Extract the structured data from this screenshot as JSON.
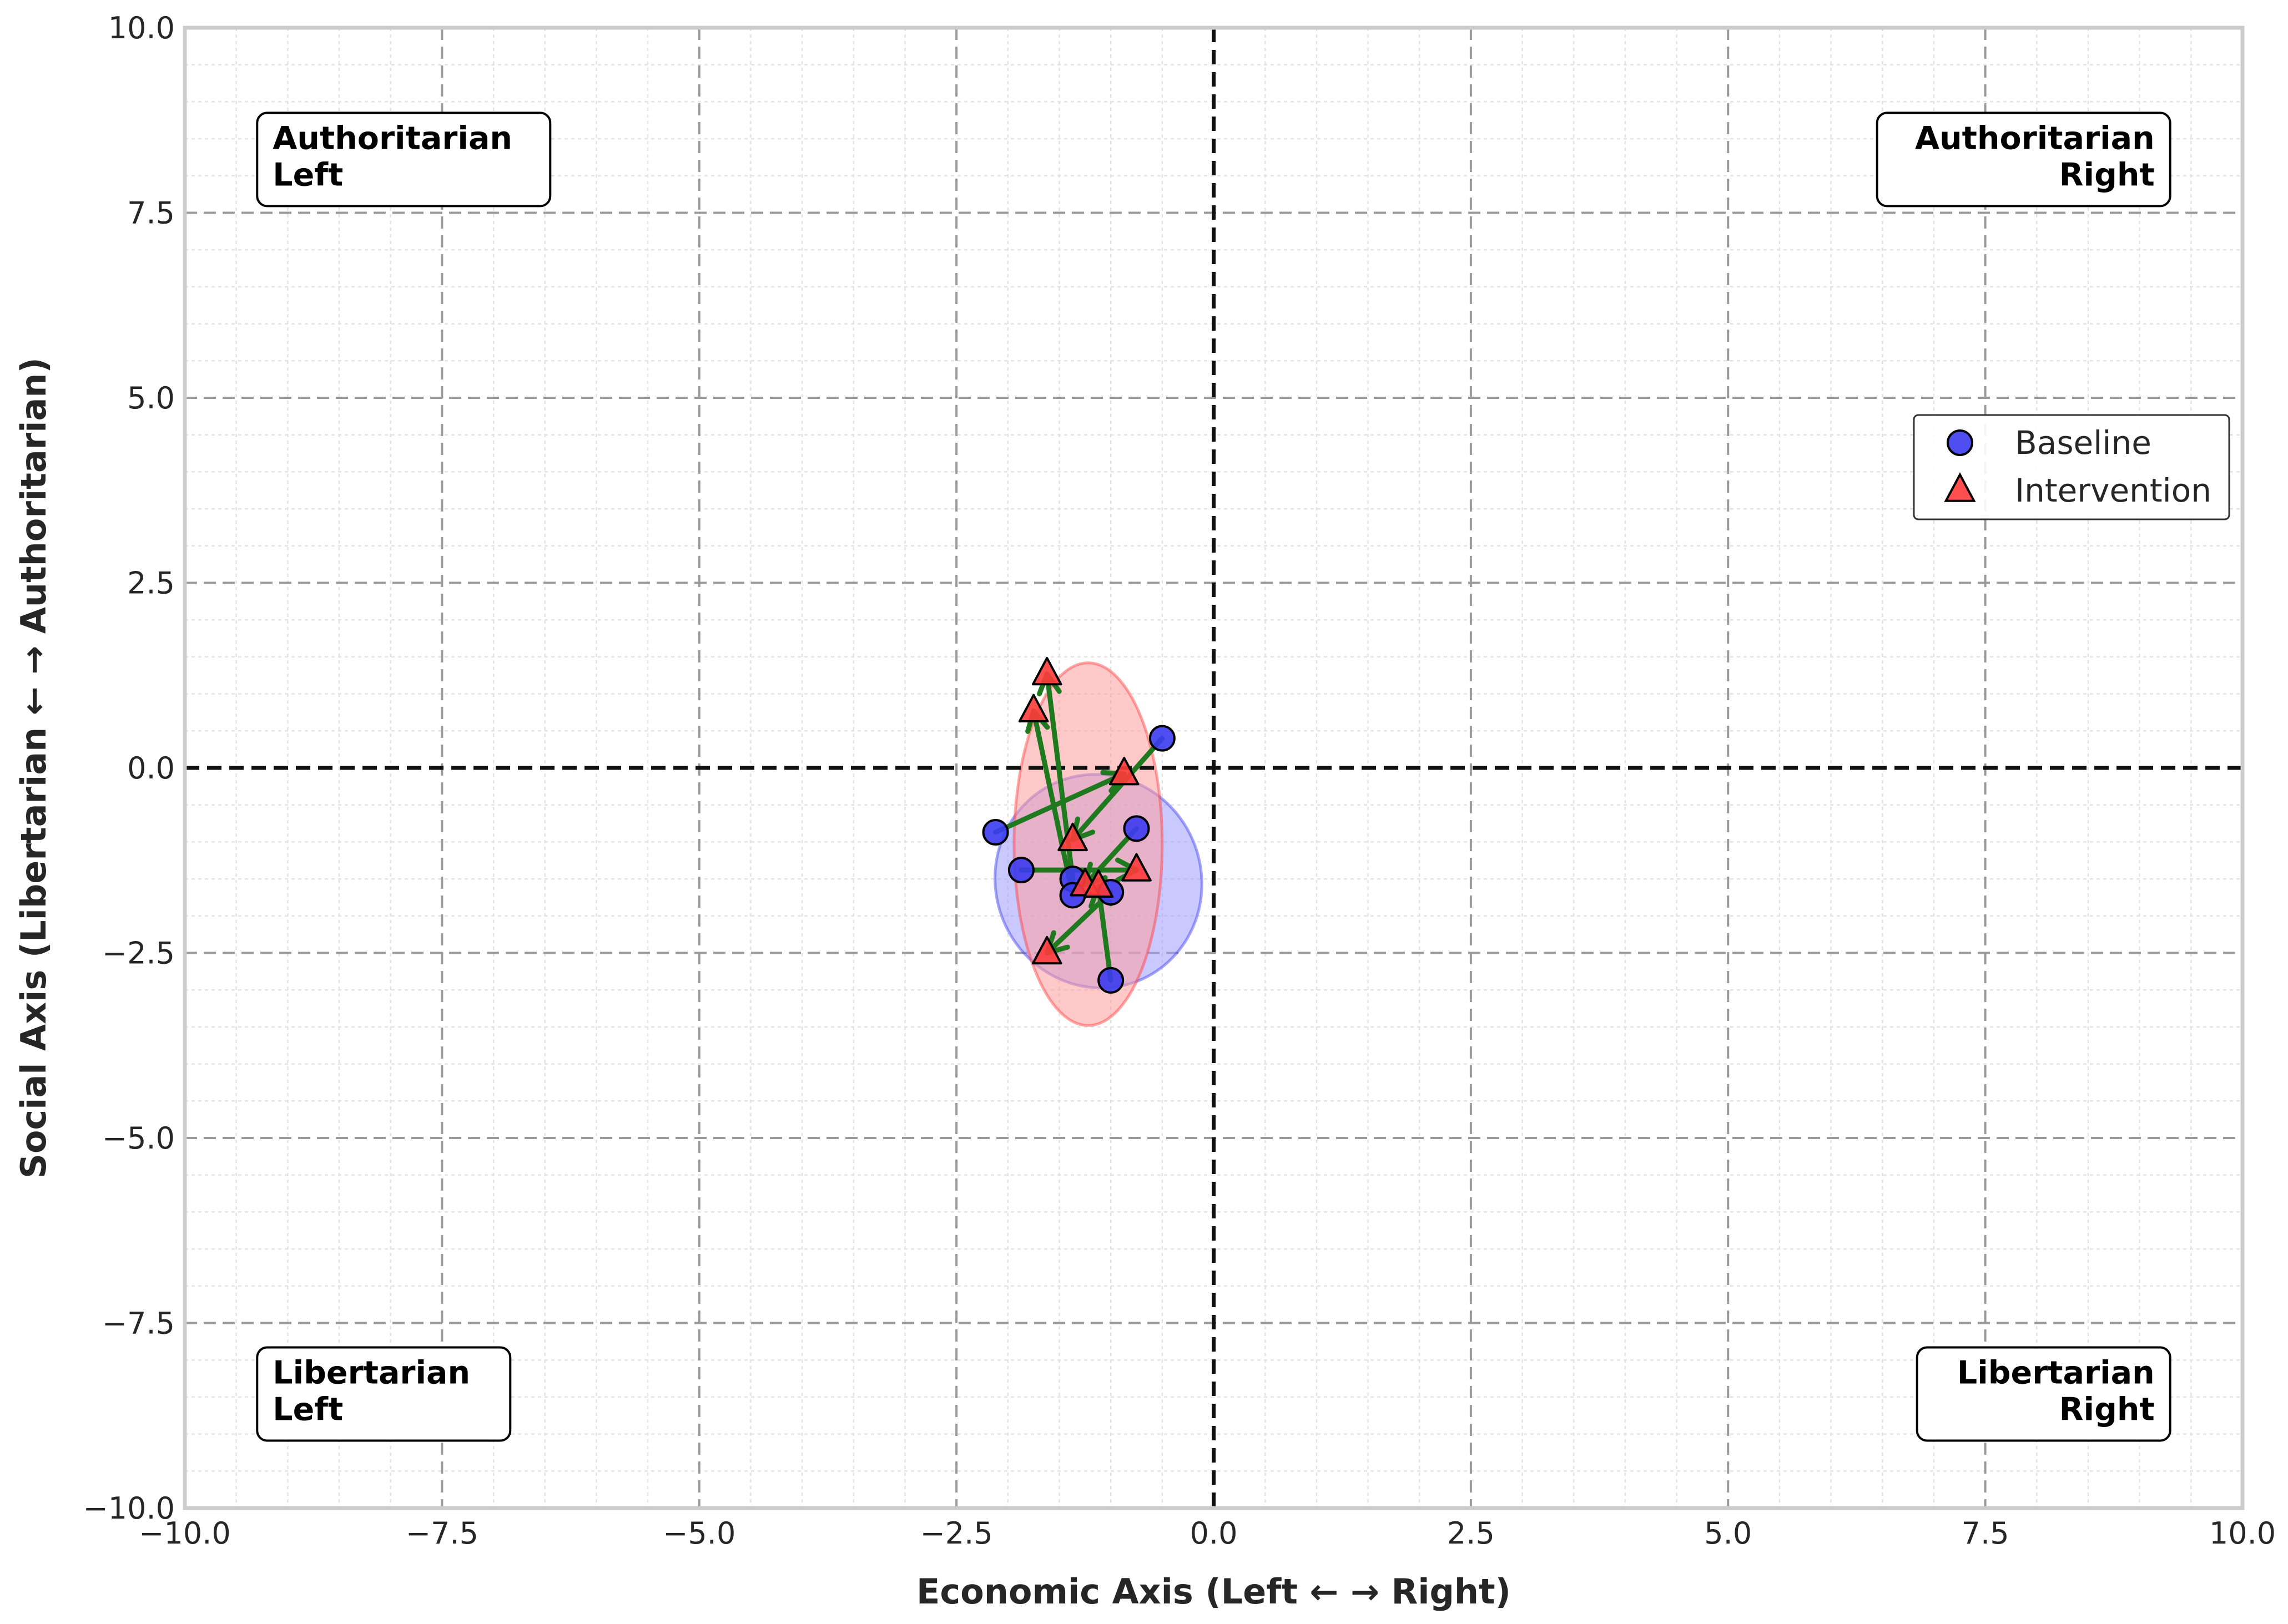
{
  "chart_data": {
    "type": "scatter",
    "xlabel": "Economic Axis (Left ← → Right)",
    "ylabel": "Social Axis (Libertarian ← → Authoritarian)",
    "xlim": [
      -10,
      10
    ],
    "ylim": [
      -10,
      10
    ],
    "xticks": [
      -10.0,
      -7.5,
      -5.0,
      -2.5,
      0.0,
      2.5,
      5.0,
      7.5,
      10.0
    ],
    "yticks": [
      -10.0,
      -7.5,
      -5.0,
      -2.5,
      0.0,
      2.5,
      5.0,
      7.5,
      10.0
    ],
    "xtick_labels": [
      "−10.0",
      "−7.5",
      "−5.0",
      "−2.5",
      "0.0",
      "2.5",
      "5.0",
      "7.5",
      "10.0"
    ],
    "ytick_labels": [
      "−10.0",
      "−7.5",
      "−5.0",
      "−2.5",
      "0.0",
      "2.5",
      "5.0",
      "7.5",
      "10.0"
    ],
    "grid": true,
    "minor_grid": true,
    "legend_position": "center-right",
    "quadrant_labels": [
      {
        "line1": "Authoritarian",
        "line2": "Left",
        "corner": "top-left"
      },
      {
        "line1": "Authoritarian",
        "line2": "Right",
        "corner": "top-right"
      },
      {
        "line1": "Libertarian",
        "line2": "Left",
        "corner": "bottom-left"
      },
      {
        "line1": "Libertarian",
        "line2": "Right",
        "corner": "bottom-right"
      }
    ],
    "series": [
      {
        "name": "Baseline",
        "marker": "circle",
        "color": "#3b3bf0",
        "points": [
          {
            "x": -0.5,
            "y": 0.4
          },
          {
            "x": -2.12,
            "y": -0.87
          },
          {
            "x": -1.87,
            "y": -1.38
          },
          {
            "x": -0.75,
            "y": -0.82
          },
          {
            "x": -1.37,
            "y": -1.5
          },
          {
            "x": -1.37,
            "y": -1.72
          },
          {
            "x": -1.0,
            "y": -1.68
          },
          {
            "x": -1.0,
            "y": -2.87
          }
        ],
        "ellipse": {
          "cx": -1.12,
          "cy": -1.53,
          "rx": 1.0,
          "ry": 1.45,
          "angle": -20,
          "fill": "#9c9cff"
        }
      },
      {
        "name": "Intervention",
        "marker": "triangle",
        "color": "#ff3b3b",
        "points": [
          {
            "x": -0.87,
            "y": -0.08
          },
          {
            "x": -1.75,
            "y": 0.77
          },
          {
            "x": -1.62,
            "y": 1.27
          },
          {
            "x": -1.37,
            "y": -0.97
          },
          {
            "x": -0.75,
            "y": -1.38
          },
          {
            "x": -1.25,
            "y": -1.58
          },
          {
            "x": -1.12,
            "y": -1.6
          },
          {
            "x": -1.62,
            "y": -2.5
          }
        ],
        "ellipse": {
          "cx": -1.22,
          "cy": -1.03,
          "rx": 0.72,
          "ry": 2.45,
          "angle": 0,
          "fill": "#ff9c9c"
        }
      }
    ],
    "arrows": {
      "color": "#1f7a1f",
      "pairs": [
        {
          "from": [
            -0.5,
            0.4
          ],
          "to": [
            -1.37,
            -0.97
          ]
        },
        {
          "from": [
            -2.12,
            -0.87
          ],
          "to": [
            -0.87,
            -0.08
          ]
        },
        {
          "from": [
            -1.37,
            -1.5
          ],
          "to": [
            -1.62,
            1.27
          ]
        },
        {
          "from": [
            -1.37,
            -1.72
          ],
          "to": [
            -1.75,
            0.77
          ]
        },
        {
          "from": [
            -1.87,
            -1.38
          ],
          "to": [
            -0.75,
            -1.38
          ]
        },
        {
          "from": [
            -0.75,
            -0.82
          ],
          "to": [
            -1.25,
            -1.58
          ]
        },
        {
          "from": [
            -1.0,
            -1.68
          ],
          "to": [
            -1.62,
            -2.5
          ]
        },
        {
          "from": [
            -1.0,
            -2.87
          ],
          "to": [
            -1.12,
            -1.6
          ]
        }
      ]
    }
  }
}
